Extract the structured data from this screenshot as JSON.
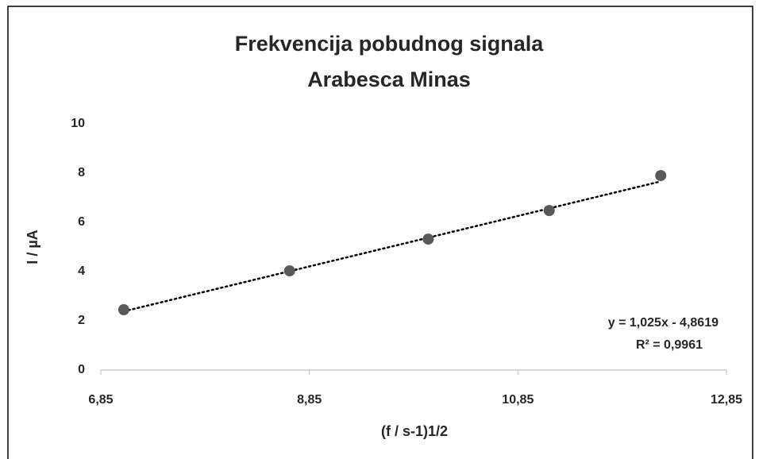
{
  "chart_data": {
    "type": "scatter",
    "title": [
      "Frekvencija pobudnog signala",
      "Arabesca Minas"
    ],
    "xlabel": "(f / s-1)1/2",
    "ylabel": "I / µA",
    "x": [
      7.07,
      8.66,
      9.99,
      11.15,
      12.22
    ],
    "series": [
      {
        "name": "Arabesca Minas",
        "color": "#595959",
        "values": [
          2.45,
          4.03,
          5.32,
          6.48,
          7.9
        ]
      }
    ],
    "xlim": [
      6.85,
      12.85
    ],
    "xticks": [
      {
        "value": 6.85,
        "label": "6,85"
      },
      {
        "value": 8.85,
        "label": "8,85"
      },
      {
        "value": 10.85,
        "label": "10,85"
      },
      {
        "value": 12.85,
        "label": "12,85"
      }
    ],
    "ylim": [
      0,
      10
    ],
    "yticks": [
      0,
      2,
      4,
      6,
      8,
      10
    ],
    "grid": false,
    "trendline": {
      "slope": 1.025,
      "intercept": -4.8619,
      "equation": "y = 1,025x - 4,8619",
      "r2": "R² = 0,9961"
    }
  }
}
